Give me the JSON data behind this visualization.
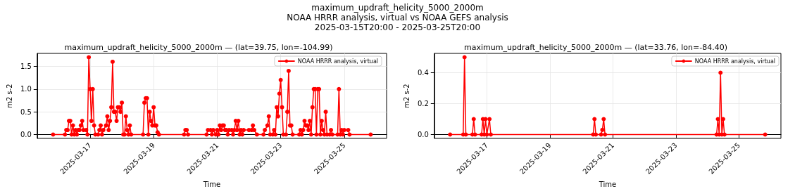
{
  "chart_data": [
    {
      "type": "line",
      "title": "maximum_updraft_helicity_5000_2000m — (lat=39.75, lon=-104.99)",
      "annotations": [
        "maximum_updraft_helicity_5000_2000m",
        "NOAA HRRR analysis, virtual vs NOAA GEFS analysis",
        "2025-03-15T20:00 - 2025-03-25T20:00"
      ],
      "xlabel": "Time",
      "ylabel": "m2 s-2",
      "x": [
        "2025-03-15T20:00",
        "2025-03-16T05:00",
        "2025-03-16T06:00",
        "2025-03-16T07:00",
        "2025-03-16T08:00",
        "2025-03-16T09:00",
        "2025-03-16T10:00",
        "2025-03-16T11:00",
        "2025-03-16T12:00",
        "2025-03-16T13:00",
        "2025-03-16T14:00",
        "2025-03-16T15:00",
        "2025-03-16T16:00",
        "2025-03-16T17:00",
        "2025-03-16T18:00",
        "2025-03-16T19:00",
        "2025-03-16T21:00",
        "2025-03-16T22:00",
        "2025-03-16T23:00",
        "2025-03-17T00:00",
        "2025-03-17T01:00",
        "2025-03-17T02:00",
        "2025-03-17T03:00",
        "2025-03-17T04:00",
        "2025-03-17T06:00",
        "2025-03-17T07:00",
        "2025-03-17T08:00",
        "2025-03-17T09:00",
        "2025-03-17T10:00",
        "2025-03-17T12:00",
        "2025-03-17T13:00",
        "2025-03-17T14:00",
        "2025-03-17T15:00",
        "2025-03-17T16:00",
        "2025-03-17T17:00",
        "2025-03-17T18:00",
        "2025-03-17T19:00",
        "2025-03-17T20:00",
        "2025-03-17T21:00",
        "2025-03-17T22:00",
        "2025-03-17T23:00",
        "2025-03-18T00:00",
        "2025-03-18T01:00",
        "2025-03-18T02:00",
        "2025-03-18T03:00",
        "2025-03-18T04:00",
        "2025-03-18T05:00",
        "2025-03-18T06:00",
        "2025-03-18T07:00",
        "2025-03-18T16:00",
        "2025-03-18T17:00",
        "2025-03-18T18:00",
        "2025-03-18T19:00",
        "2025-03-18T20:00",
        "2025-03-18T21:00",
        "2025-03-18T22:00",
        "2025-03-18T23:00",
        "2025-03-19T00:00",
        "2025-03-19T01:00",
        "2025-03-19T02:00",
        "2025-03-19T03:00",
        "2025-03-19T04:00",
        "2025-03-19T23:00",
        "2025-03-20T00:00",
        "2025-03-20T01:00",
        "2025-03-20T02:00",
        "2025-03-20T16:00",
        "2025-03-20T17:00",
        "2025-03-20T19:00",
        "2025-03-20T20:00",
        "2025-03-20T21:00",
        "2025-03-20T23:00",
        "2025-03-21T00:00",
        "2025-03-21T01:00",
        "2025-03-21T02:00",
        "2025-03-21T03:00",
        "2025-03-21T04:00",
        "2025-03-21T05:00",
        "2025-03-21T06:00",
        "2025-03-21T07:00",
        "2025-03-21T08:00",
        "2025-03-21T09:00",
        "2025-03-21T11:00",
        "2025-03-21T12:00",
        "2025-03-21T13:00",
        "2025-03-21T14:00",
        "2025-03-21T15:00",
        "2025-03-21T16:00",
        "2025-03-21T17:00",
        "2025-03-21T18:00",
        "2025-03-21T19:00",
        "2025-03-21T20:00",
        "2025-03-22T00:00",
        "2025-03-22T02:00",
        "2025-03-22T03:00",
        "2025-03-22T04:00",
        "2025-03-22T06:00",
        "2025-03-22T11:00",
        "2025-03-22T12:00",
        "2025-03-22T14:00",
        "2025-03-22T15:00",
        "2025-03-22T16:00",
        "2025-03-22T18:00",
        "2025-03-22T19:00",
        "2025-03-22T20:00",
        "2025-03-22T21:00",
        "2025-03-22T22:00",
        "2025-03-22T23:00",
        "2025-03-23T00:00",
        "2025-03-23T01:00",
        "2025-03-23T02:00",
        "2025-03-23T04:00",
        "2025-03-23T05:00",
        "2025-03-23T06:00",
        "2025-03-23T07:00",
        "2025-03-23T08:00",
        "2025-03-23T09:00",
        "2025-03-23T14:00",
        "2025-03-23T15:00",
        "2025-03-23T16:00",
        "2025-03-23T17:00",
        "2025-03-23T18:00",
        "2025-03-23T19:00",
        "2025-03-23T20:00",
        "2025-03-23T21:00",
        "2025-03-23T22:00",
        "2025-03-23T23:00",
        "2025-03-24T00:00",
        "2025-03-24T01:00",
        "2025-03-24T02:00",
        "2025-03-24T03:00",
        "2025-03-24T04:00",
        "2025-03-24T05:00",
        "2025-03-24T06:00",
        "2025-03-24T07:00",
        "2025-03-24T08:00",
        "2025-03-24T09:00",
        "2025-03-24T10:00",
        "2025-03-24T11:00",
        "2025-03-24T13:00",
        "2025-03-24T14:00",
        "2025-03-24T15:00",
        "2025-03-24T19:00",
        "2025-03-24T20:00",
        "2025-03-24T21:00",
        "2025-03-24T22:00",
        "2025-03-24T23:00",
        "2025-03-25T00:00",
        "2025-03-25T03:00",
        "2025-03-25T04:00",
        "2025-03-25T20:00"
      ],
      "series": [
        {
          "name": "NOAA HRRR analysis, virtual",
          "color": "#ff0000",
          "values": [
            0,
            0,
            0.1,
            0.1,
            0.3,
            0.3,
            0,
            0.2,
            0,
            0.1,
            0,
            0.1,
            0.1,
            0.2,
            0.3,
            0.1,
            0.1,
            0,
            1.7,
            1.0,
            0.3,
            1.0,
            0.2,
            0,
            0,
            0.1,
            0.2,
            0,
            0.1,
            0.2,
            0.4,
            0.1,
            0.3,
            0.6,
            1.6,
            0.5,
            0.5,
            0.3,
            0.6,
            0.6,
            0.5,
            0.7,
            0,
            0,
            0.4,
            0.1,
            0,
            0.2,
            0,
            0,
            0.7,
            0.8,
            0.8,
            0,
            0.5,
            0.3,
            0.2,
            0.6,
            0.2,
            0.2,
            0.05,
            0,
            0,
            0.1,
            0.1,
            0,
            0,
            0.1,
            0.1,
            0,
            0.1,
            0,
            0.1,
            0,
            0.2,
            0.1,
            0.2,
            0.2,
            0.1,
            0.1,
            0,
            0.1,
            0.1,
            0,
            0.1,
            0.3,
            0.1,
            0.3,
            0,
            0.1,
            0,
            0.1,
            0.1,
            0.1,
            0.2,
            0.1,
            0,
            0,
            0.1,
            0.2,
            0.4,
            0,
            0,
            0.1,
            0,
            0.6,
            0.4,
            0.9,
            1.2,
            0.6,
            0,
            0,
            0.5,
            1.4,
            0.2,
            0.2,
            0,
            0,
            0.1,
            0,
            0.1,
            0.3,
            0.2,
            0.2,
            0.1,
            0.3,
            0,
            0.6,
            1.0,
            1.0,
            0,
            1.0,
            1.0,
            0,
            0.3,
            0.1,
            0,
            0.5,
            0,
            0,
            0.1,
            0,
            0,
            1.0,
            0,
            0.1,
            0,
            0.1,
            0.1,
            0,
            0
          ]
        }
      ],
      "xlim": [
        "2025-03-15T08:00",
        "2025-03-26T08:00"
      ],
      "xticks": [
        "2025-03-17",
        "2025-03-19",
        "2025-03-21",
        "2025-03-23",
        "2025-03-25"
      ],
      "ylim": [
        -0.085,
        1.785
      ],
      "yticks": [
        {
          "value": 0,
          "label": "0.0"
        },
        {
          "value": 0.5,
          "label": "0.5"
        },
        {
          "value": 1,
          "label": "1.0"
        },
        {
          "value": 1.5,
          "label": "1.5"
        }
      ],
      "grid": true,
      "legend": "top right",
      "marker": "circle",
      "line_style": "solid"
    },
    {
      "type": "line",
      "title": "maximum_updraft_helicity_5000_2000m — (lat=33.76, lon=-84.40)",
      "xlabel": "Time",
      "ylabel": "m2 s-2",
      "x": [
        "2025-03-15T20:00",
        "2025-03-16T06:00",
        "2025-03-16T07:00",
        "2025-03-16T08:00",
        "2025-03-16T13:00",
        "2025-03-16T14:00",
        "2025-03-16T15:00",
        "2025-03-16T20:00",
        "2025-03-16T21:00",
        "2025-03-16T22:00",
        "2025-03-16T23:00",
        "2025-03-17T00:00",
        "2025-03-17T02:00",
        "2025-03-17T03:00",
        "2025-03-20T09:00",
        "2025-03-20T10:00",
        "2025-03-20T11:00",
        "2025-03-20T15:00",
        "2025-03-20T16:00",
        "2025-03-20T17:00",
        "2025-03-20T18:00",
        "2025-03-24T07:00",
        "2025-03-24T08:00",
        "2025-03-24T09:00",
        "2025-03-24T10:00",
        "2025-03-24T11:00",
        "2025-03-24T12:00",
        "2025-03-24T13:00",
        "2025-03-25T20:00"
      ],
      "series": [
        {
          "name": "NOAA HRRR analysis, virtual",
          "color": "#ff0000",
          "values": [
            0,
            0,
            0.5,
            0,
            0,
            0.1,
            0,
            0,
            0.1,
            0,
            0.1,
            0,
            0.1,
            0,
            0,
            0.1,
            0,
            0,
            0.03,
            0.1,
            0,
            0,
            0.1,
            0,
            0.4,
            0,
            0.1,
            0,
            0
          ]
        }
      ],
      "xlim": [
        "2025-03-15T08:00",
        "2025-03-26T08:00"
      ],
      "xticks": [
        "2025-03-17",
        "2025-03-19",
        "2025-03-21",
        "2025-03-23",
        "2025-03-25"
      ],
      "ylim": [
        -0.025,
        0.525
      ],
      "yticks": [
        {
          "value": 0,
          "label": "0.0"
        },
        {
          "value": 0.2,
          "label": "0.2"
        },
        {
          "value": 0.4,
          "label": "0.4"
        }
      ],
      "grid": true,
      "legend": "top right",
      "marker": "circle",
      "line_style": "solid"
    }
  ]
}
